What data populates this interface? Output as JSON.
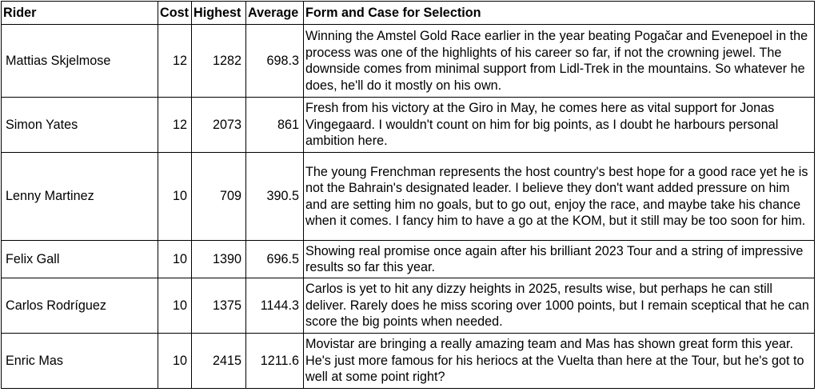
{
  "headers": {
    "rider": "Rider",
    "cost": "Cost",
    "highest": "Highest",
    "average": "Average",
    "form": "Form and Case for Selection"
  },
  "rows": [
    {
      "rider": "Mattias Skjelmose",
      "cost": "12",
      "highest": "1282",
      "average": "698.3",
      "form": "Winning the Amstel Gold Race earlier in the year beating Pogačar and Evenepoel in the process was one of the highlights of his career so far, if not the crowning jewel. The downside comes from minimal support from Lidl-Trek in the mountains. So whatever he does, he'll do it mostly on his own."
    },
    {
      "rider": "Simon Yates",
      "cost": "12",
      "highest": "2073",
      "average": "861",
      "form": "Fresh from his victory at the Giro in May, he comes here as vital support for Jonas Vingegaard. I wouldn't count on him for big points, as I doubt he harbours personal ambition here."
    },
    {
      "rider": "Lenny Martinez",
      "cost": "10",
      "highest": "709",
      "average": "390.5",
      "form": "The young Frenchman represents the host country's best hope for a good race yet he is not the Bahrain's designated leader. I believe they don't want added pressure on him and are setting him no goals, but to go out, enjoy the race, and maybe take his chance when it comes. I fancy him to have a go at the KOM, but it still may be too soon for him."
    },
    {
      "rider": "Felix Gall",
      "cost": "10",
      "highest": "1390",
      "average": "696.5",
      "form": "Showing real promise once again after his brilliant 2023 Tour and a string of impressive results so far this year."
    },
    {
      "rider": "Carlos Rodríguez",
      "cost": "10",
      "highest": "1375",
      "average": "1144.3",
      "form": "Carlos is yet to hit any dizzy heights in 2025, results wise, but perhaps he can still deliver. Rarely does he miss scoring over 1000 points, but I remain sceptical that he can score the big points when needed."
    },
    {
      "rider": "Enric Mas",
      "cost": "10",
      "highest": "2415",
      "average": "1211.6",
      "form": "Movistar are bringing a really amazing team and Mas has shown great form this year. He's just more famous for his heriocs at the Vuelta than here at the Tour, but he's got to well at some point right?"
    }
  ]
}
